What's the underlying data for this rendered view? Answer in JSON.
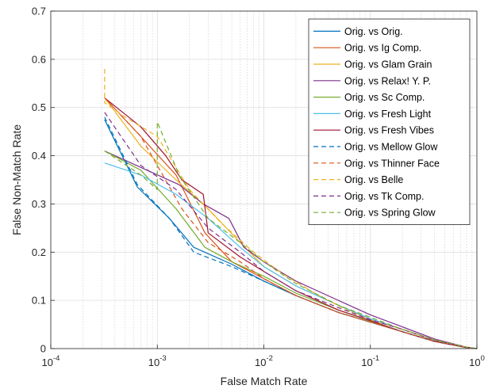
{
  "chart_data": {
    "type": "line",
    "title": "",
    "xlabel": "False Match Rate",
    "ylabel": "False Non-Match Rate",
    "xscale": "log",
    "xlim": [
      0.0001,
      1
    ],
    "ylim": [
      0,
      0.7
    ],
    "x_ticks": [
      {
        "value": 0.0001,
        "base": "10",
        "exp": "-4"
      },
      {
        "value": 0.001,
        "base": "10",
        "exp": "-3"
      },
      {
        "value": 0.01,
        "base": "10",
        "exp": "-2"
      },
      {
        "value": 0.1,
        "base": "10",
        "exp": "-1"
      },
      {
        "value": 1,
        "base": "10",
        "exp": "0"
      }
    ],
    "y_ticks": [
      {
        "value": 0,
        "label": "0"
      },
      {
        "value": 0.1,
        "label": "0.1"
      },
      {
        "value": 0.2,
        "label": "0.2"
      },
      {
        "value": 0.3,
        "label": "0.3"
      },
      {
        "value": 0.4,
        "label": "0.4"
      },
      {
        "value": 0.5,
        "label": "0.5"
      },
      {
        "value": 0.6,
        "label": "0.6"
      },
      {
        "value": 0.7,
        "label": "0.7"
      }
    ],
    "grid": true,
    "minor_grid": true,
    "legend_position": "top-right",
    "series": [
      {
        "name": "Orig. vs Orig.",
        "color": "#0072BD",
        "dash": "solid",
        "x": [
          0.00032,
          0.00065,
          0.0013,
          0.0022,
          0.005,
          0.01,
          0.02,
          0.05,
          0.1,
          0.2,
          0.4,
          0.8,
          1
        ],
        "y": [
          0.475,
          0.335,
          0.27,
          0.21,
          0.175,
          0.14,
          0.11,
          0.075,
          0.055,
          0.035,
          0.015,
          0.002,
          0
        ]
      },
      {
        "name": "Orig. vs Ig Comp.",
        "color": "#D95319",
        "dash": "solid",
        "x": [
          0.00032,
          0.0007,
          0.0015,
          0.0028,
          0.005,
          0.01,
          0.02,
          0.05,
          0.1,
          0.2,
          0.4,
          0.8,
          1
        ],
        "y": [
          0.52,
          0.44,
          0.36,
          0.24,
          0.18,
          0.145,
          0.11,
          0.075,
          0.055,
          0.035,
          0.015,
          0.002,
          0
        ]
      },
      {
        "name": "Orig. vs Glam Grain",
        "color": "#EDB120",
        "dash": "solid",
        "x": [
          0.00032,
          0.0007,
          0.0015,
          0.003,
          0.006,
          0.01,
          0.02,
          0.05,
          0.1,
          0.2,
          0.4,
          0.8,
          1
        ],
        "y": [
          0.52,
          0.42,
          0.35,
          0.29,
          0.22,
          0.17,
          0.13,
          0.09,
          0.06,
          0.04,
          0.018,
          0.003,
          0
        ]
      },
      {
        "name": "Orig. vs Relax! Y. P.",
        "color": "#7E2F8E",
        "dash": "solid",
        "x": [
          0.00032,
          0.0008,
          0.0016,
          0.0027,
          0.0047,
          0.0065,
          0.01,
          0.02,
          0.05,
          0.1,
          0.2,
          0.4,
          0.8,
          1
        ],
        "y": [
          0.41,
          0.37,
          0.34,
          0.3,
          0.27,
          0.21,
          0.18,
          0.14,
          0.1,
          0.07,
          0.045,
          0.02,
          0.003,
          0
        ]
      },
      {
        "name": "Orig. vs Sc Comp.",
        "color": "#77AC30",
        "dash": "solid",
        "x": [
          0.00032,
          0.0007,
          0.0015,
          0.0028,
          0.005,
          0.01,
          0.02,
          0.05,
          0.1,
          0.2,
          0.4,
          0.8,
          1
        ],
        "y": [
          0.41,
          0.37,
          0.29,
          0.21,
          0.18,
          0.15,
          0.115,
          0.08,
          0.057,
          0.035,
          0.015,
          0.002,
          0
        ]
      },
      {
        "name": "Orig. vs Fresh Light",
        "color": "#4DBEEE",
        "dash": "solid",
        "x": [
          0.00032,
          0.0007,
          0.0015,
          0.003,
          0.006,
          0.01,
          0.02,
          0.05,
          0.1,
          0.2,
          0.4,
          0.8,
          1
        ],
        "y": [
          0.385,
          0.36,
          0.32,
          0.27,
          0.21,
          0.17,
          0.13,
          0.09,
          0.062,
          0.04,
          0.018,
          0.003,
          0
        ]
      },
      {
        "name": "Orig. vs Fresh Vibes",
        "color": "#A2142F",
        "dash": "solid",
        "x": [
          0.00032,
          0.0007,
          0.0012,
          0.0017,
          0.0027,
          0.003,
          0.006,
          0.01,
          0.02,
          0.05,
          0.1,
          0.2,
          0.4,
          0.8,
          1
        ],
        "y": [
          0.52,
          0.46,
          0.4,
          0.35,
          0.32,
          0.24,
          0.19,
          0.16,
          0.12,
          0.08,
          0.058,
          0.035,
          0.015,
          0.002,
          0
        ]
      },
      {
        "name": "Orig. vs Mellow Glow",
        "color": "#0072BD",
        "dash": "dashed",
        "x": [
          0.00032,
          0.00065,
          0.0013,
          0.0022,
          0.005,
          0.01,
          0.02,
          0.05,
          0.1,
          0.2,
          0.4,
          0.8,
          1
        ],
        "y": [
          0.48,
          0.34,
          0.27,
          0.2,
          0.17,
          0.14,
          0.11,
          0.075,
          0.055,
          0.035,
          0.015,
          0.002,
          0
        ]
      },
      {
        "name": "Orig. vs Thinner Face",
        "color": "#D95319",
        "dash": "dashed",
        "x": [
          0.00032,
          0.0007,
          0.0017,
          0.003,
          0.006,
          0.01,
          0.02,
          0.05,
          0.1,
          0.2,
          0.4,
          0.8,
          1
        ],
        "y": [
          0.52,
          0.44,
          0.29,
          0.22,
          0.18,
          0.145,
          0.11,
          0.075,
          0.055,
          0.035,
          0.015,
          0.002,
          0
        ]
      },
      {
        "name": "Orig. vs Belle",
        "color": "#EDB120",
        "dash": "dashed",
        "x": [
          0.00032,
          0.00032,
          0.0005,
          0.001,
          0.002,
          0.004,
          0.008,
          0.015,
          0.03,
          0.06,
          0.1,
          0.2,
          0.4,
          0.8,
          1
        ],
        "y": [
          0.58,
          0.51,
          0.48,
          0.44,
          0.33,
          0.26,
          0.2,
          0.155,
          0.115,
          0.08,
          0.06,
          0.04,
          0.018,
          0.003,
          0
        ]
      },
      {
        "name": "Orig. vs Tk Comp.",
        "color": "#7E2F8E",
        "dash": "dashed",
        "x": [
          0.00032,
          0.0007,
          0.0015,
          0.003,
          0.006,
          0.01,
          0.02,
          0.05,
          0.1,
          0.2,
          0.4,
          0.8,
          1
        ],
        "y": [
          0.49,
          0.38,
          0.33,
          0.25,
          0.2,
          0.16,
          0.12,
          0.085,
          0.06,
          0.04,
          0.017,
          0.003,
          0
        ]
      },
      {
        "name": "Orig. vs Spring Glow",
        "color": "#77AC30",
        "dash": "dashed",
        "x": [
          0.00032,
          0.0007,
          0.001,
          0.001,
          0.0016,
          0.003,
          0.006,
          0.01,
          0.02,
          0.05,
          0.1,
          0.2,
          0.4,
          0.8,
          1
        ],
        "y": [
          0.41,
          0.36,
          0.33,
          0.47,
          0.36,
          0.27,
          0.22,
          0.18,
          0.135,
          0.09,
          0.065,
          0.04,
          0.018,
          0.003,
          0
        ]
      }
    ]
  }
}
